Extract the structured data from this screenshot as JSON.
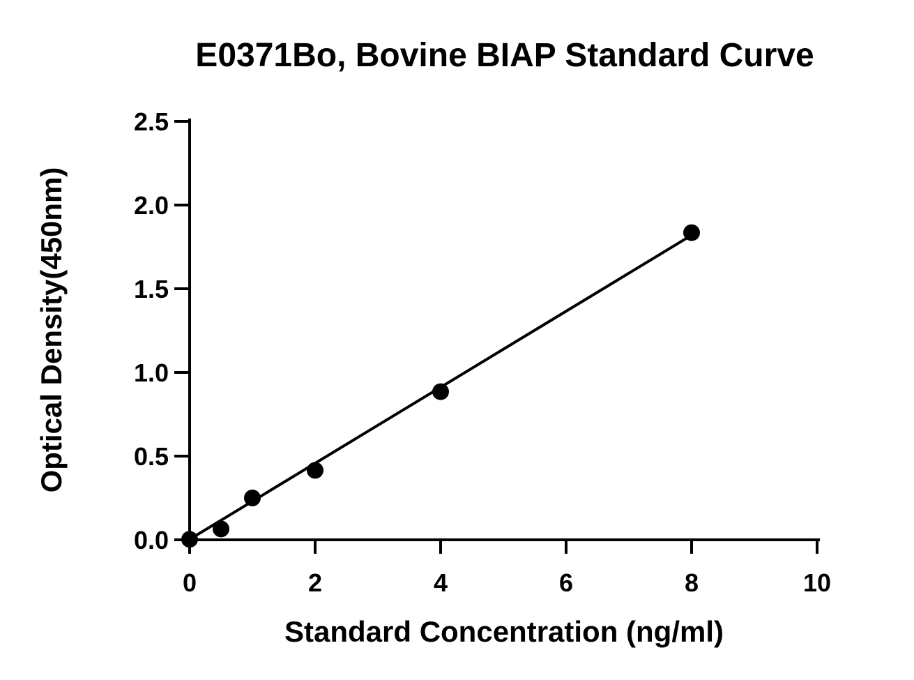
{
  "chart_data": {
    "type": "scatter",
    "title": "E0371Bo, Bovine BIAP Standard Curve",
    "xlabel": "Standard Concentration (ng/ml)",
    "ylabel": "Optical Density(450nm)",
    "xlim": [
      0,
      10
    ],
    "ylim": [
      0,
      2.5
    ],
    "x_ticks": [
      "0",
      "2",
      "4",
      "6",
      "8",
      "10"
    ],
    "y_ticks": [
      "0.0",
      "0.5",
      "1.0",
      "1.5",
      "2.0",
      "2.5"
    ],
    "grid": false,
    "legend": "none",
    "series": [
      {
        "x": [
          0,
          0.5,
          1,
          2,
          4,
          8
        ],
        "y": [
          0.003,
          0.065,
          0.25,
          0.415,
          0.885,
          1.835
        ]
      }
    ],
    "fit_line": {
      "x": [
        0,
        8
      ],
      "y": [
        0.003,
        1.82
      ]
    },
    "colors": {
      "marker": "#000000",
      "line": "#000000",
      "axis": "#000000"
    }
  }
}
